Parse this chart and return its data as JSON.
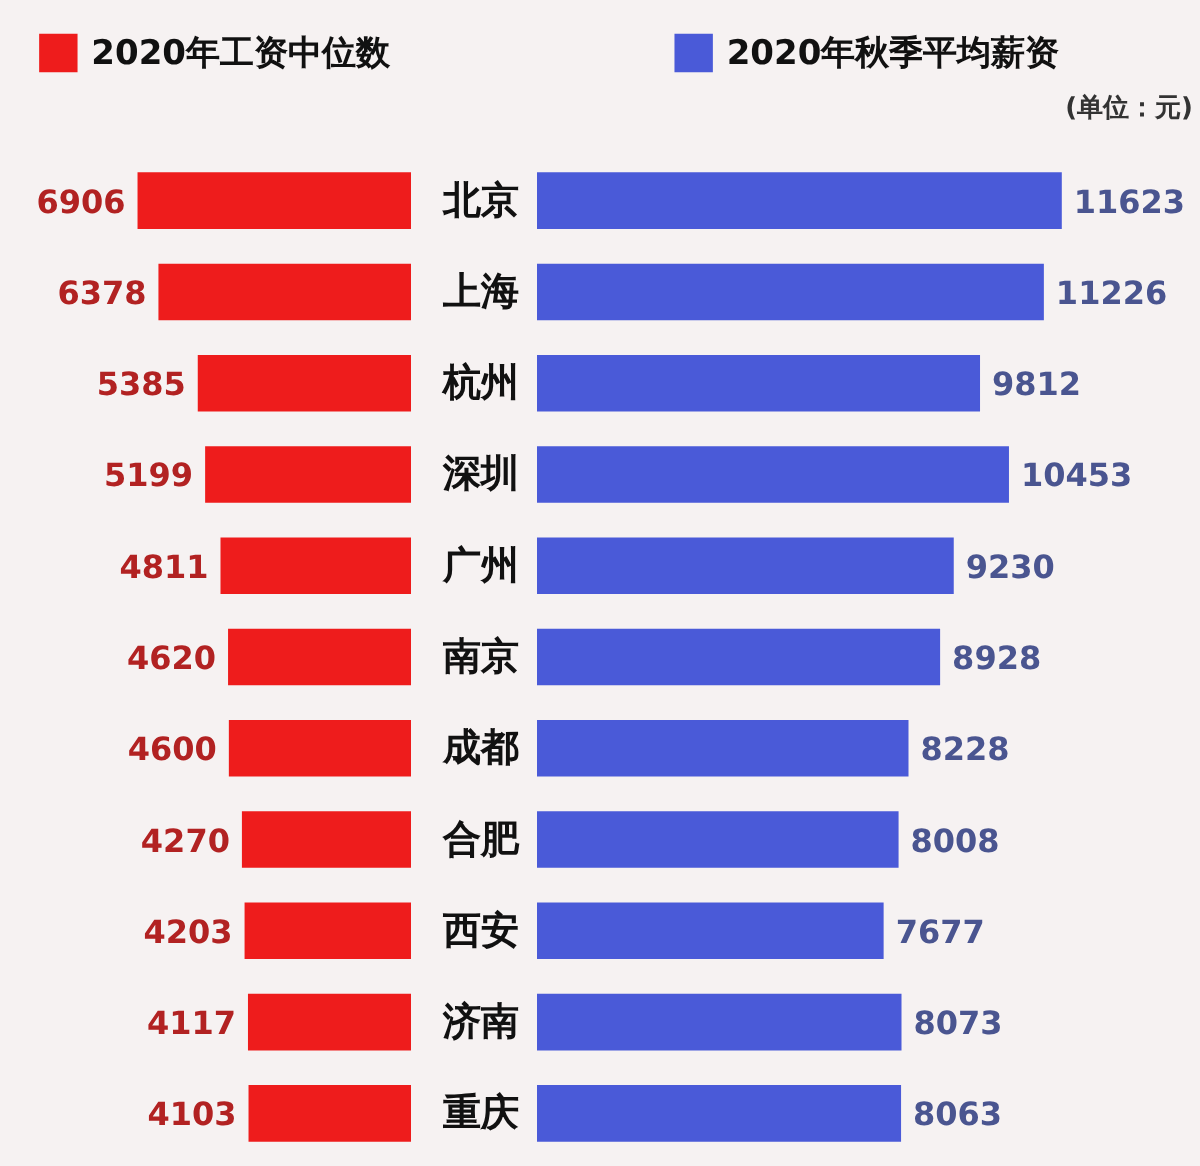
{
  "chart_data": [
    {
      "type": "bar",
      "orientation": "horizontal",
      "categories": [
        "北京",
        "上海",
        "杭州",
        "深圳",
        "广州",
        "南京",
        "成都",
        "合肥",
        "西安",
        "济南",
        "重庆"
      ],
      "series": [
        {
          "name": "2020年工资中位数",
          "color": "#ee1c1c",
          "values": [
            6906,
            6378,
            5385,
            5199,
            4811,
            4620,
            4600,
            4270,
            4203,
            4117,
            4103
          ]
        }
      ],
      "data_labels": true,
      "legend": "top"
    },
    {
      "type": "bar",
      "orientation": "horizontal",
      "categories": [
        null,
        null,
        null,
        null,
        null,
        null,
        null,
        null,
        null,
        null,
        null
      ],
      "series": [
        {
          "name": "2020年秋季平均薪资",
          "color": "#4a5ad8",
          "values": [
            11623,
            11226,
            9812,
            10453,
            9230,
            8928,
            8228,
            8008,
            7677,
            8073,
            8063
          ]
        }
      ],
      "data_labels": true,
      "legend": "top",
      "annotations": [
        "(单位：元)"
      ]
    }
  ]
}
